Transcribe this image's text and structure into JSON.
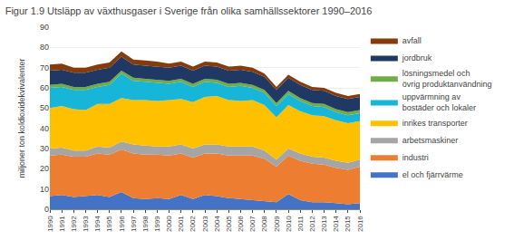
{
  "chart_data": {
    "type": "area",
    "stacked": true,
    "title": "Figur 1.9 Utsläpp av växthusgaser i Sverige från olika samhällssektorer 1990–2016",
    "ylabel": "miljoner ton koldioxidekvivalenter",
    "x": [
      1990,
      1991,
      1992,
      1993,
      1994,
      1995,
      1996,
      1997,
      1998,
      1999,
      2000,
      2001,
      2002,
      2003,
      2004,
      2005,
      2006,
      2007,
      2008,
      2009,
      2010,
      2011,
      2012,
      2013,
      2014,
      2015,
      2016
    ],
    "series": [
      {
        "name": "el och fjärrvärme",
        "color": "#4472c4",
        "values": [
          6.5,
          7.0,
          6.0,
          6.5,
          7.0,
          6.0,
          8.5,
          5.5,
          5.0,
          5.5,
          5.0,
          7.0,
          5.0,
          7.0,
          6.5,
          5.5,
          5.0,
          4.5,
          4.0,
          3.5,
          7.5,
          4.5,
          3.5,
          3.5,
          3.0,
          2.5,
          3.0
        ]
      },
      {
        "name": "industri",
        "color": "#ed7d31",
        "values": [
          20.0,
          20.0,
          20.0,
          19.5,
          20.5,
          21.0,
          21.0,
          22.0,
          22.0,
          21.5,
          21.5,
          20.5,
          20.5,
          20.5,
          21.0,
          21.0,
          21.5,
          22.0,
          21.0,
          17.5,
          19.0,
          19.5,
          19.0,
          18.5,
          17.5,
          17.0,
          18.0
        ]
      },
      {
        "name": "arbetsmaskiner",
        "color": "#a5a5a5",
        "values": [
          3.5,
          3.5,
          3.0,
          3.0,
          3.5,
          3.5,
          4.0,
          4.5,
          4.5,
          4.0,
          4.5,
          4.5,
          4.5,
          4.5,
          4.5,
          4.5,
          4.5,
          4.5,
          4.0,
          3.5,
          3.5,
          3.5,
          3.5,
          3.5,
          3.5,
          3.5,
          3.5
        ]
      },
      {
        "name": "inrikes transporter",
        "color": "#ffc000",
        "values": [
          20.0,
          20.5,
          20.5,
          20.0,
          21.0,
          21.5,
          21.5,
          22.0,
          22.5,
          22.5,
          23.0,
          22.5,
          23.0,
          23.5,
          24.0,
          23.0,
          22.5,
          23.0,
          22.5,
          21.0,
          21.5,
          21.0,
          20.5,
          20.5,
          20.0,
          19.5,
          19.0
        ]
      },
      {
        "name": "uppvärmning av\nbostäder och lokaler",
        "color": "#17b5d8",
        "values": [
          10.0,
          9.5,
          9.5,
          10.0,
          8.5,
          9.5,
          12.0,
          9.5,
          9.0,
          9.0,
          8.0,
          8.5,
          7.5,
          7.5,
          6.5,
          6.5,
          7.5,
          6.0,
          6.0,
          5.5,
          5.5,
          5.0,
          4.5,
          4.5,
          4.0,
          4.0,
          4.0
        ]
      },
      {
        "name": "lösningsmedel och\növrig produktanvändning",
        "color": "#70ad47",
        "values": [
          1.5,
          1.5,
          1.5,
          1.5,
          1.5,
          1.5,
          1.5,
          1.5,
          1.5,
          1.5,
          1.5,
          1.5,
          1.5,
          1.5,
          1.5,
          1.5,
          1.5,
          1.5,
          1.5,
          1.5,
          1.5,
          1.5,
          1.5,
          1.5,
          1.5,
          1.5,
          1.5
        ]
      },
      {
        "name": "jordbruk",
        "color": "#1f3864",
        "values": [
          7.0,
          7.0,
          7.0,
          7.0,
          7.0,
          7.0,
          7.0,
          6.5,
          6.5,
          6.5,
          6.5,
          6.5,
          6.5,
          6.5,
          6.5,
          6.5,
          6.5,
          6.5,
          6.5,
          6.5,
          6.5,
          6.5,
          6.5,
          6.5,
          6.5,
          6.5,
          6.5
        ]
      },
      {
        "name": "avfall",
        "color": "#843c0c",
        "values": [
          3.0,
          3.0,
          2.5,
          2.5,
          2.5,
          2.5,
          2.5,
          2.5,
          2.5,
          2.5,
          2.0,
          2.0,
          2.0,
          2.0,
          2.0,
          2.0,
          2.0,
          2.0,
          1.5,
          1.5,
          1.5,
          1.5,
          1.5,
          1.5,
          1.5,
          1.5,
          1.5
        ]
      }
    ],
    "xlim": [
      1990,
      2016
    ],
    "xticks": [
      1990,
      1991,
      1992,
      1993,
      1994,
      1995,
      1996,
      1997,
      1998,
      1999,
      2000,
      2001,
      2002,
      2003,
      2004,
      2005,
      2006,
      2007,
      2008,
      2009,
      2010,
      2011,
      2012,
      2013,
      2014,
      2015,
      2016
    ],
    "ylim": [
      0,
      90
    ],
    "yticks": [
      0,
      10,
      20,
      30,
      40,
      50,
      60,
      70,
      80,
      90
    ],
    "grid": true,
    "legend": "right"
  }
}
